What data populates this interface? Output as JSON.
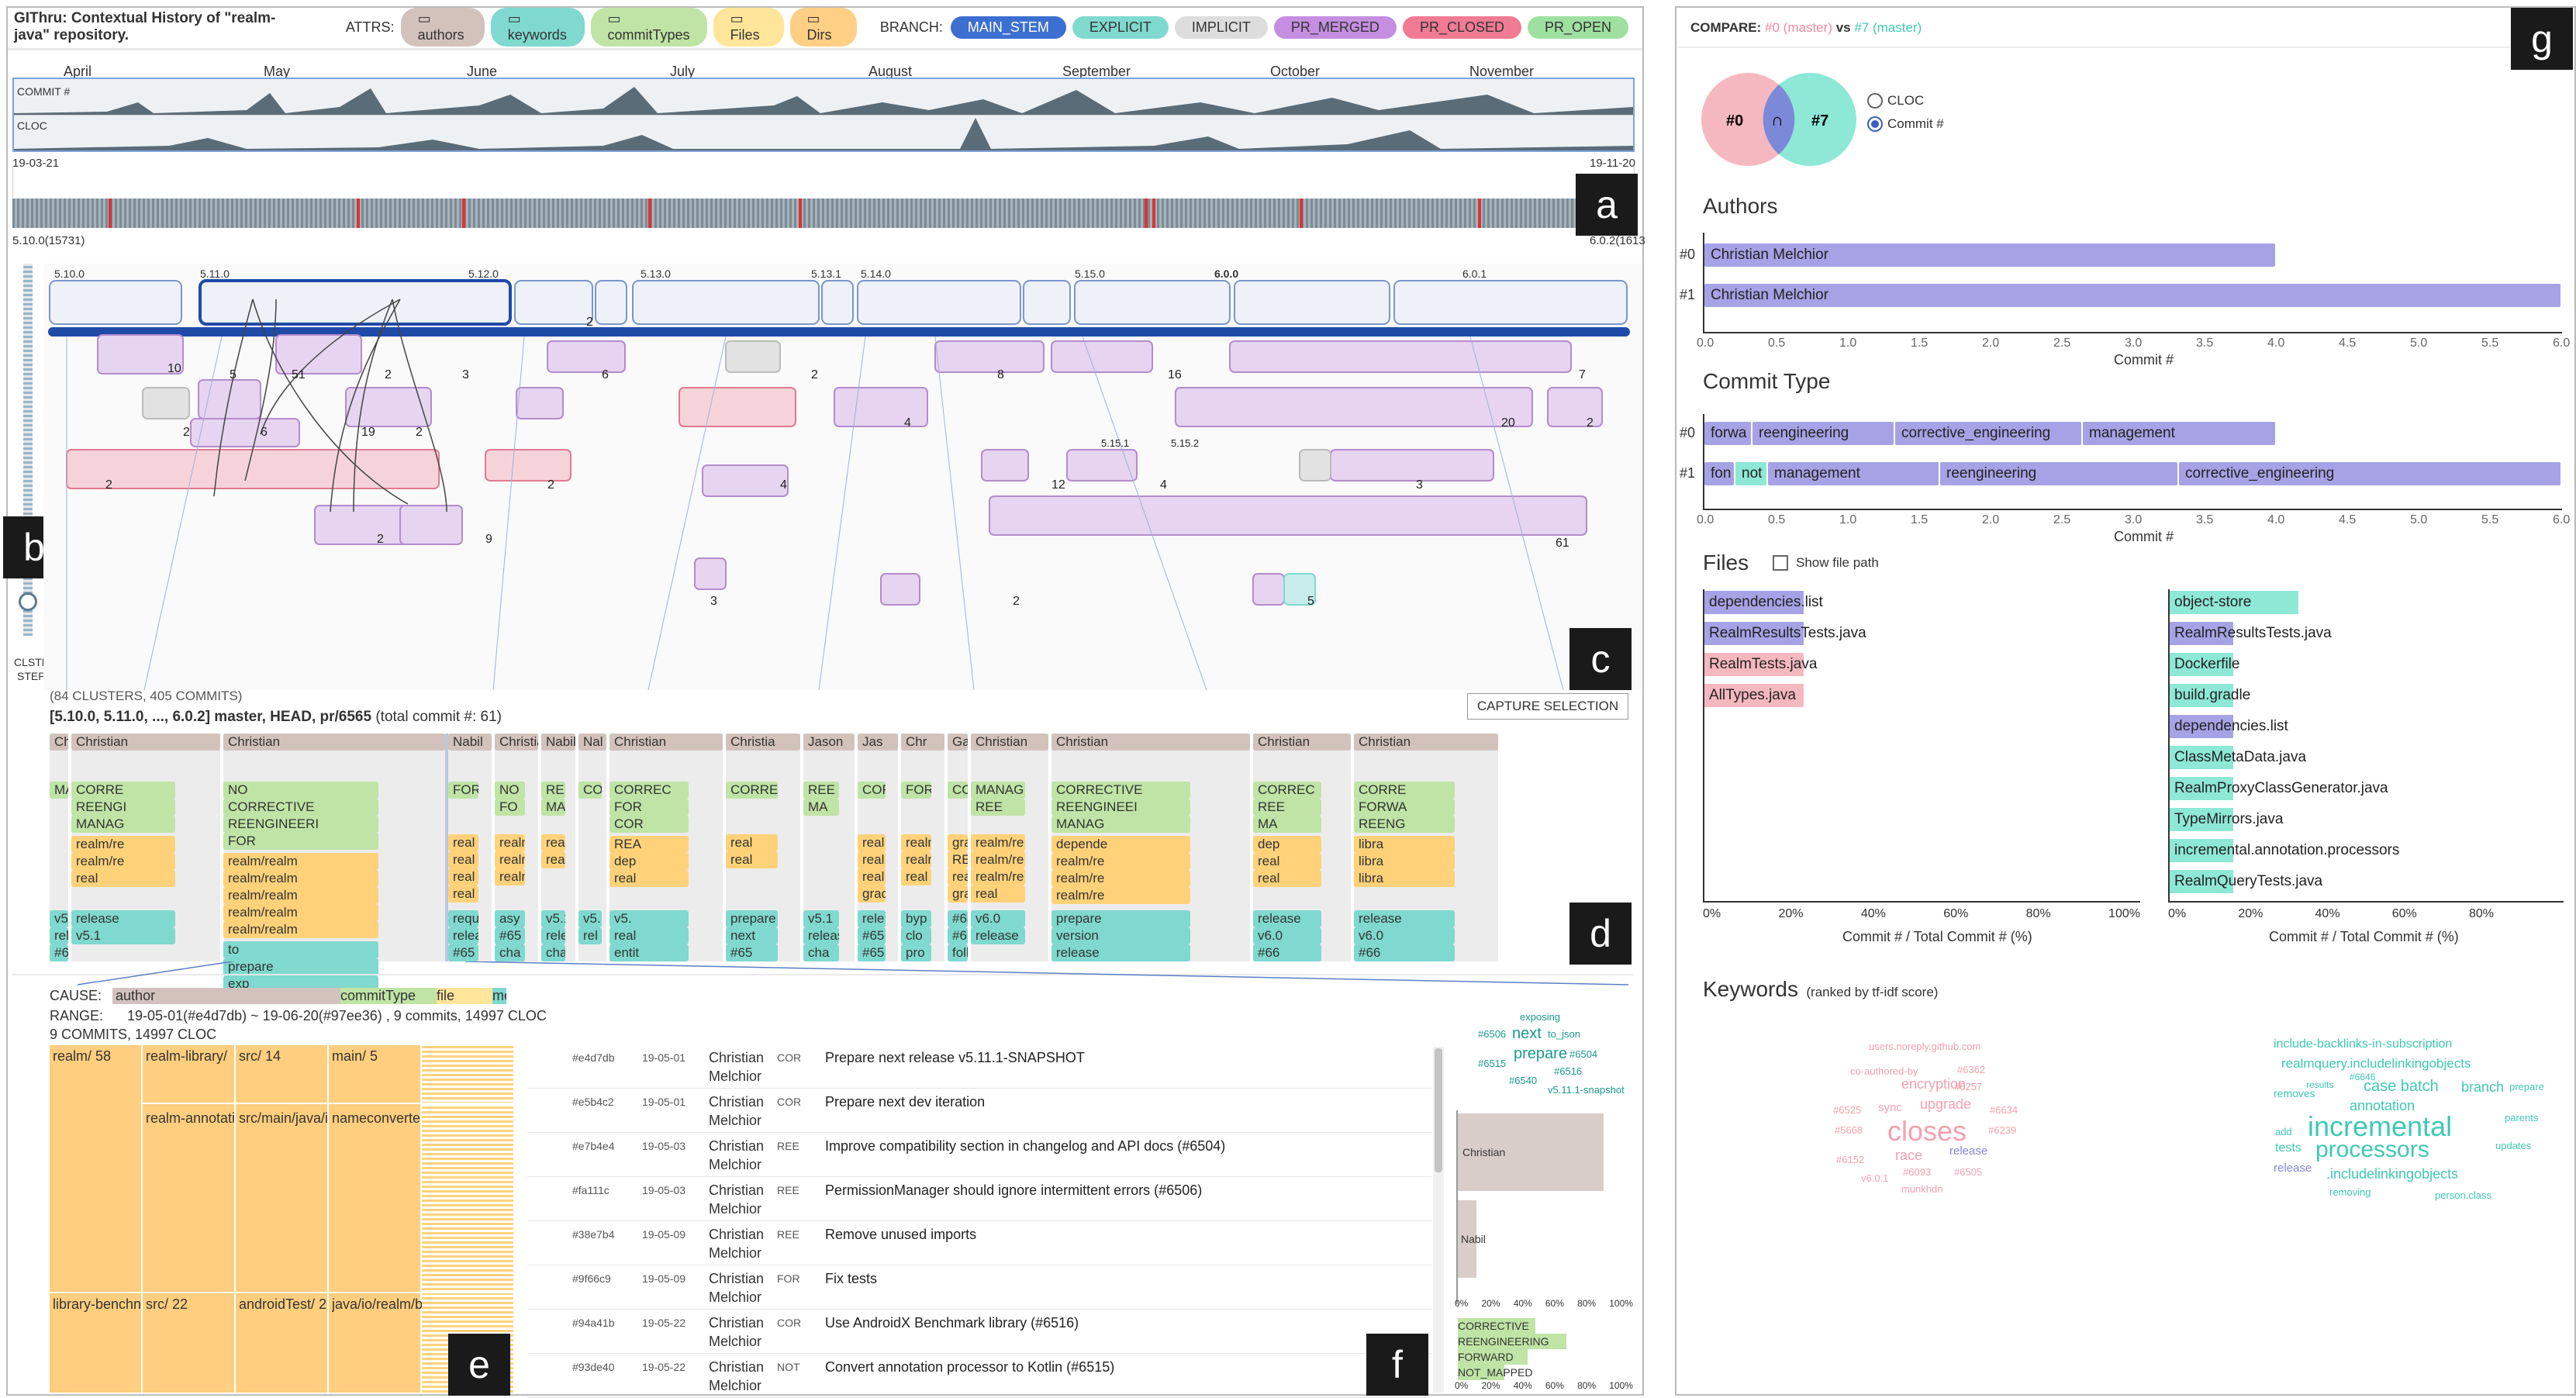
{
  "header": {
    "title": "GIThru: Contextual History of \"realm-java\" repository.",
    "attrs_label": "ATTRS:",
    "attrs": [
      "authors",
      "keywords",
      "commitTypes",
      "Files",
      "Dirs"
    ],
    "branch_label": "BRANCH:",
    "branches": [
      "MAIN_STEM",
      "EXPLICIT",
      "IMPLICIT",
      "PR_MERGED",
      "PR_CLOSED",
      "PR_OPEN"
    ]
  },
  "timeline": {
    "months": [
      "April",
      "May",
      "June",
      "July",
      "August",
      "September",
      "October",
      "November"
    ],
    "row1": "COMMIT #",
    "row2": "CLOC",
    "start": "19-03-21",
    "end": "19-11-20",
    "left_ver": "5.10.0(15731)",
    "right_ver": "6.0.2(1613"
  },
  "side": {
    "label1": "CLSTR",
    "label2": "STEP"
  },
  "graph": {
    "versions": [
      "5.10.0",
      "5.11.0",
      "5.12.0",
      "5.13.0",
      "5.13.1",
      "5.14.0",
      "5.15.0",
      "6.0.0",
      "6.0.1"
    ],
    "counts": [
      "10",
      "5",
      "51",
      "2",
      "3",
      "19",
      "2",
      "6",
      "2",
      "9",
      "2",
      "2",
      "2",
      "6",
      "4",
      "8",
      "16",
      "7",
      "2",
      "20",
      "2",
      "4",
      "12",
      "4",
      "3",
      "61",
      "2",
      "5",
      "3",
      "2"
    ],
    "sub_versions": [
      "5.15.1",
      "5.15.2"
    ]
  },
  "summary": {
    "clusters": "(84 CLUSTERS, 405 COMMITS)",
    "title": "[5.10.0, 5.11.0, ..., 6.0.2] master, HEAD, pr/6565",
    "total": "(total commit #: 61)",
    "capture": "CAPTURE SELECTION"
  },
  "detail_cols": [
    {
      "a": "Ch",
      "t": [
        "MA"
      ],
      "f": [],
      "k": [
        "v5.1",
        "rele",
        "#64"
      ]
    },
    {
      "a": "Christian",
      "t": [
        "CORRE",
        "REENGI",
        "MANAG"
      ],
      "f": [
        "realm/re",
        "realm/re",
        "real"
      ],
      "k": [
        "release",
        "v5.1"
      ]
    },
    {
      "a": "Christian",
      "t": [
        "NO",
        "CORRECTIVE",
        "REENGINEERI",
        "FOR"
      ],
      "f": [
        "realm/realm",
        "realm/realm",
        "realm/realm",
        "realm/realm",
        "realm/realm"
      ],
      "k": [
        "to",
        "prepare",
        "exp"
      ]
    },
    {
      "a": "Nabil",
      "t": [
        "FORWA"
      ],
      "f": [
        "real",
        "real",
        "real",
        "real"
      ],
      "k": [
        "request",
        "relea",
        "#65"
      ]
    },
    {
      "a": "Christia",
      "t": [
        "NO",
        "FO"
      ],
      "f": [
        "realm/r",
        "realm/r",
        "realm/r"
      ],
      "k": [
        "asy",
        "#65",
        "cha"
      ]
    },
    {
      "a": "Nabil",
      "t": [
        "REE",
        "MA"
      ],
      "f": [
        "real",
        "real"
      ],
      "k": [
        "v5.1",
        "release",
        "cha"
      ]
    },
    {
      "a": "Nal",
      "t": [
        "CORRE"
      ],
      "f": [],
      "k": [
        "v5.",
        "rel"
      ]
    },
    {
      "a": "Christian",
      "t": [
        "CORREC",
        "FOR",
        "COR"
      ],
      "f": [
        "REA",
        "dep",
        "real"
      ],
      "k": [
        "v5.",
        "real",
        "entit"
      ]
    },
    {
      "a": "Christia",
      "t": [
        "CORRECTIV"
      ],
      "f": [
        "real",
        "real"
      ],
      "k": [
        "prepare",
        "next",
        "#65"
      ]
    },
    {
      "a": "Jason",
      "t": [
        "REE",
        "MA"
      ],
      "f": [],
      "k": [
        "v5.1",
        "release",
        "cha"
      ]
    },
    {
      "a": "Jas",
      "t": [
        "CORRECTIV"
      ],
      "f": [
        "real",
        "real",
        "real",
        "grad"
      ],
      "k": [
        "rele",
        "#65",
        "#65"
      ]
    },
    {
      "a": "Chr",
      "t": [
        "FORWA"
      ],
      "f": [
        "realm/r",
        "realm/r",
        "real"
      ],
      "k": [
        "byp",
        "clo",
        "pro"
      ]
    },
    {
      "a": "Ga",
      "t": [
        "CO"
      ],
      "f": [
        "gra",
        "REA",
        "rea",
        "gra"
      ],
      "k": [
        "#65",
        "#65",
        "foll"
      ]
    },
    {
      "a": "Christian",
      "t": [
        "MANAG",
        "REE"
      ],
      "f": [
        "realm/re",
        "realm/re",
        "realm/re",
        "real"
      ],
      "k": [
        "v6.0",
        "release"
      ]
    },
    {
      "a": "Christian",
      "t": [
        "CORRECTIVE",
        "REENGINEEI",
        "MANAG"
      ],
      "f": [
        "depende",
        "realm/re",
        "realm/re",
        "realm/re"
      ],
      "k": [
        "prepare",
        "version",
        "release"
      ]
    },
    {
      "a": "Christian",
      "t": [
        "CORREC",
        "REE",
        "MA"
      ],
      "f": [
        "dep",
        "real",
        "real"
      ],
      "k": [
        "release",
        "v6.0",
        "#66"
      ]
    },
    {
      "a": "Christian",
      "t": [
        "CORRE",
        "FORWA",
        "REENG"
      ],
      "f": [
        "libra",
        "libra",
        "libra"
      ],
      "k": [
        "release",
        "v6.0",
        "#66"
      ]
    }
  ],
  "cause": {
    "label": "CAUSE:",
    "segs": [
      "author",
      "commitType",
      "file",
      "me"
    ],
    "range_label": "RANGE:",
    "range": "19-05-01(#e4d7db) ~ 19-06-20(#97ee36) , 9 commits, 14997 CLOC",
    "sub": "9 COMMITS, 14997 CLOC"
  },
  "treemap": [
    {
      "t": "realm/",
      "n": "58"
    },
    {
      "t": "realm-library/",
      "n": ""
    },
    {
      "t": "src/",
      "n": "14"
    },
    {
      "t": "main/",
      "n": "5"
    },
    {
      "t": "realm-annotati",
      "n": ""
    },
    {
      "t": "src/main/java/i",
      "n": ""
    },
    {
      "t": "nameconverte",
      "n": ""
    },
    {
      "t": "library-benchn",
      "n": ""
    },
    {
      "t": "src/",
      "n": "22"
    },
    {
      "t": "androidTest/",
      "n": "2"
    },
    {
      "t": "java/io/realm/b",
      "n": ""
    }
  ],
  "commits": [
    {
      "h": "#e4d7db",
      "d": "19-05-01",
      "a": "Christian Melchior",
      "c": "COR",
      "m": "Prepare next release v5.11.1-SNAPSHOT"
    },
    {
      "h": "#e5b4c2",
      "d": "19-05-01",
      "a": "Christian Melchior",
      "c": "COR",
      "m": "Prepare next dev iteration"
    },
    {
      "h": "#e7b4e4",
      "d": "19-05-03",
      "a": "Christian Melchior",
      "c": "REE",
      "m": "Improve compatibility section in changelog and API docs (#6504)"
    },
    {
      "h": "#fa111c",
      "d": "19-05-03",
      "a": "Christian Melchior",
      "c": "REE",
      "m": "PermissionManager should ignore intermittent errors (#6506)"
    },
    {
      "h": "#38e7b4",
      "d": "19-05-09",
      "a": "Christian Melchior",
      "c": "REE",
      "m": "Remove unused imports"
    },
    {
      "h": "#9f66c9",
      "d": "19-05-09",
      "a": "Christian Melchior",
      "c": "FOR",
      "m": "Fix tests"
    },
    {
      "h": "#94a41b",
      "d": "19-05-22",
      "a": "Christian Melchior",
      "c": "COR",
      "m": "Use AndroidX Benchmark library (#6516)"
    },
    {
      "h": "#93de40",
      "d": "19-05-22",
      "a": "Christian Melchior",
      "c": "NOT",
      "m": "Convert annotation processor to Kotlin (#6515)"
    }
  ],
  "fpanel": {
    "words": [
      "exposing",
      "#6506",
      "next",
      "to_json",
      "prepare",
      "#6504",
      "#6515",
      "#6516",
      "#6540",
      "v5.11.1-snapshot"
    ],
    "authors": [
      "Christian",
      "Nabil"
    ],
    "types": [
      "CORRECTIVE",
      "REENGINEERING",
      "FORWARD",
      "NOT_MAPPED"
    ],
    "ticks": [
      "0%",
      "20%",
      "40%",
      "60%",
      "80%",
      "100%"
    ]
  },
  "compare": {
    "label": "COMPARE:",
    "a": "#0 (master)",
    "vs": "vs",
    "b": "#7 (master)",
    "v0": "#0",
    "vi": "∩",
    "v7": "#7",
    "opt1": "CLOC",
    "opt2": "Commit #"
  },
  "authors": {
    "title": "Authors",
    "r0": "#0",
    "r1": "#1",
    "b0": "Christian Melchior",
    "b1": "Christian Melchior",
    "ticks": [
      "0.0",
      "0.5",
      "1.0",
      "1.5",
      "2.0",
      "2.5",
      "3.0",
      "3.5",
      "4.0",
      "4.5",
      "5.0",
      "5.5",
      "6.0"
    ],
    "xlabel": "Commit #"
  },
  "ctype": {
    "title": "Commit Type",
    "r0": [
      "forwa",
      "reengineering",
      "corrective_engineering",
      "management"
    ],
    "r1": [
      "fon",
      "not",
      "management",
      "reengineering",
      "corrective_engineering"
    ]
  },
  "files": {
    "title": "Files",
    "show": "Show file path",
    "left": [
      "dependencies.list",
      "RealmResultsTests.java",
      "RealmTests.java",
      "AllTypes.java"
    ],
    "right": [
      "object-store",
      "RealmResultsTests.java",
      "Dockerfile",
      "build.gradle",
      "dependencies.list",
      "ClassMetaData.java",
      "RealmProxyClassGenerator.java",
      "TypeMirrors.java",
      "incremental.annotation.processors",
      "RealmQueryTests.java"
    ],
    "ticks": [
      "0%",
      "20%",
      "40%",
      "60%",
      "80%",
      "100%"
    ],
    "xlabel": "Commit # / Total Commit # (%)"
  },
  "keywords": {
    "title": "Keywords",
    "sub": "(ranked by tf-idf score)",
    "left": [
      "users.noreply.github.com",
      "co-authored-by",
      "#6362",
      "encryption",
      "#6257",
      "#6525",
      "sync",
      "upgrade",
      "#6634",
      "closes",
      "#5668",
      "#6239",
      "race",
      "release",
      "#6152",
      "#6093",
      "#6505",
      "v6.0.1",
      "munkhdn"
    ],
    "right": [
      "include-backlinks-in-subscription",
      "realmquery.includelinkingobjects",
      "#6646",
      "results",
      "case batch",
      "branch",
      "prepare",
      "removes",
      "annotation",
      "add",
      "incremental",
      "parents",
      "tests",
      "processors",
      "updates",
      "release",
      ".includelinkingobjects",
      "removing",
      "person.class"
    ]
  },
  "labels": [
    "a",
    "b",
    "c",
    "d",
    "e",
    "f",
    "g"
  ]
}
